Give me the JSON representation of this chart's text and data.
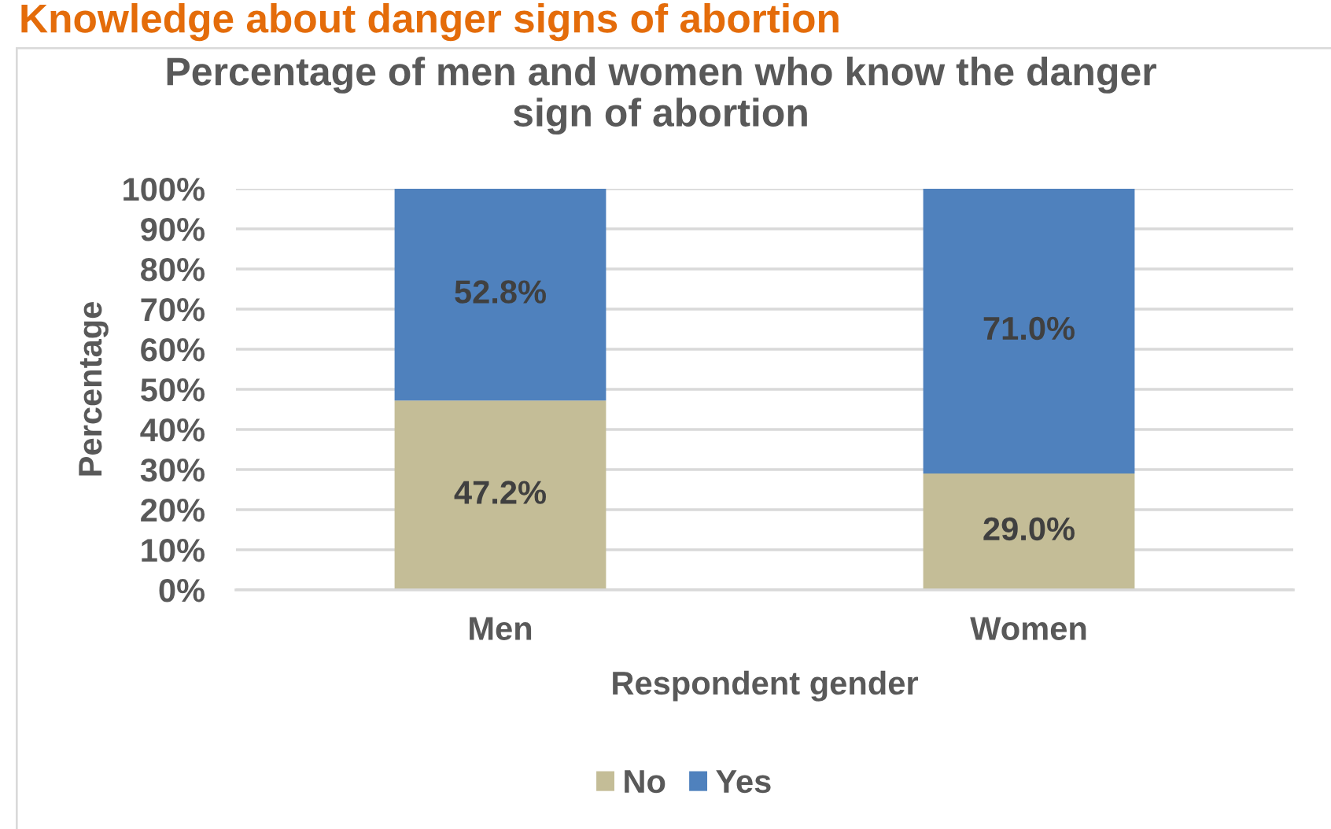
{
  "chart_data": {
    "type": "bar",
    "title": "Percentage of men and women who know the danger\nsign of abortion",
    "annotations": [
      "Knowledge about danger signs of abortion"
    ],
    "xlabel": "Respondent gender",
    "ylabel": "Percentage",
    "categories": [
      "Men",
      "Women"
    ],
    "stacked": true,
    "series": [
      {
        "name": "No",
        "color": "#c4bd97",
        "values": [
          47.2,
          29.0
        ],
        "value_labels": [
          "47.2%",
          "29.0%"
        ]
      },
      {
        "name": "Yes",
        "color": "#4f81bd",
        "values": [
          52.8,
          71.0
        ],
        "value_labels": [
          "52.8%",
          "71.0%"
        ]
      }
    ],
    "ylim": [
      0,
      100
    ],
    "yticks": [
      {
        "value": 0,
        "label": "0%"
      },
      {
        "value": 10,
        "label": "10%"
      },
      {
        "value": 20,
        "label": "20%"
      },
      {
        "value": 30,
        "label": "30%"
      },
      {
        "value": 40,
        "label": "40%"
      },
      {
        "value": 50,
        "label": "50%"
      },
      {
        "value": 60,
        "label": "60%"
      },
      {
        "value": 70,
        "label": "70%"
      },
      {
        "value": 80,
        "label": "80%"
      },
      {
        "value": 90,
        "label": "90%"
      },
      {
        "value": 100,
        "label": "100%"
      }
    ],
    "grid": "y",
    "legend": "bottom"
  }
}
